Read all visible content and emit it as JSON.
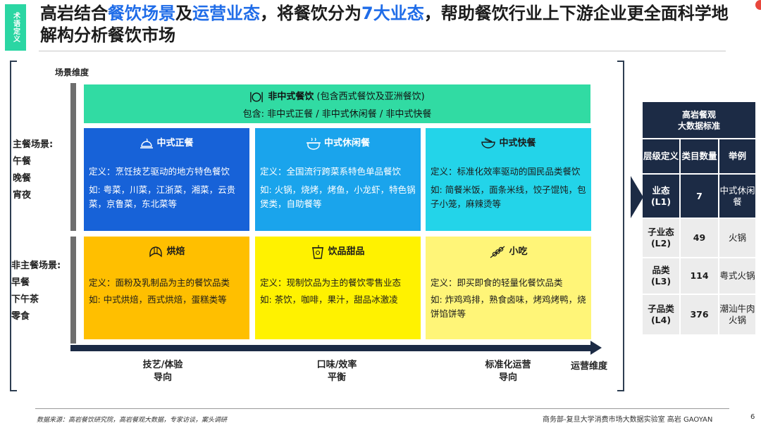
{
  "tag": {
    "text": "术语定义"
  },
  "title": {
    "parts": [
      {
        "t": "高岩结合",
        "hl": false
      },
      {
        "t": "餐饮场景",
        "hl": true
      },
      {
        "t": "及",
        "hl": false
      },
      {
        "t": "运营业态",
        "hl": true
      },
      {
        "t": "，将餐饮分为",
        "hl": false
      },
      {
        "t": "7大业态",
        "hl": true
      },
      {
        "t": "，帮助餐饮行业上下游企业更全面科学地解构分析餐饮市场",
        "hl": false
      }
    ]
  },
  "matrix": {
    "y_dimension": "场景维度",
    "x_dimension": "运营维度",
    "row_labels": {
      "main_title": "主餐场景:",
      "main_items": [
        "午餐",
        "晚餐",
        "宵夜"
      ],
      "non_main_title": "非主餐场景:",
      "non_main_items": [
        "早餐",
        "下午茶",
        "零食"
      ]
    },
    "banner": {
      "title": "非中式餐饮",
      "subtitle": "(包含西式餐饮及亚洲餐饮)",
      "content": "包含: 非中式正餐 / 非中式休闲餐 / 非中式快餐",
      "icon": "fork-knife-plate-icon"
    },
    "cells": {
      "chinese_formal": {
        "name": "中式正餐",
        "icon": "cloche-icon",
        "definition": "定义：烹饪技艺驱动的地方特色餐饮",
        "examples": "如: 粤菜，川菜，江浙菜，湘菜，云贵菜，京鲁菜，东北菜等"
      },
      "chinese_casual": {
        "name": "中式休闲餐",
        "icon": "hotpot-icon",
        "definition": "定义：全国流行跨菜系特色单品餐饮",
        "examples": "如: 火锅，烧烤，烤鱼，小龙虾，特色锅煲类，自助餐等"
      },
      "chinese_fast": {
        "name": "中式快餐",
        "icon": "bowl-icon",
        "definition": "定义：标准化效率驱动的国民品类餐饮",
        "examples": "如: 简餐米饭，面条米线，饺子馄饨，包子小笼，麻辣烫等"
      },
      "bakery": {
        "name": "烘焙",
        "icon": "croissant-icon",
        "definition": "定义：面粉及乳制品为主的餐饮品类",
        "examples": "如: 中式烘焙，西式烘焙，蛋糕类等"
      },
      "drinks": {
        "name": "饮品甜品",
        "icon": "cup-icon",
        "definition": "定义：现制饮品为主的餐饮零售业态",
        "examples": "如: 茶饮，咖啡，果汁，甜品冰激凌"
      },
      "snacks": {
        "name": "小吃",
        "icon": "skewer-icon",
        "definition": "定义：即买即食的轻量化餐饮品类",
        "examples": "如: 炸鸡鸡排，熟食卤味，烤鸡烤鸭，烧饼馅饼等"
      }
    },
    "x_labels": [
      {
        "line1": "技艺/体验",
        "line2": "导向"
      },
      {
        "line1": "口味/效率",
        "line2": "平衡"
      },
      {
        "line1": "标准化运营",
        "line2": "导向"
      }
    ]
  },
  "standard_table": {
    "title_line1": "高岩餐观",
    "title_line2": "大数据标准",
    "columns": [
      "层级定义",
      "类目数量",
      "举例"
    ],
    "rows": [
      {
        "level": "业态(L1)",
        "count": "7",
        "example": "中式休闲餐",
        "active": true
      },
      {
        "level": "子业态(L2)",
        "count": "49",
        "example": "火锅",
        "active": false
      },
      {
        "level": "品类(L3)",
        "count": "114",
        "example": "粤式火锅",
        "active": false
      },
      {
        "level": "子品类(L4)",
        "count": "376",
        "example": "潮汕牛肉火锅",
        "active": false
      }
    ]
  },
  "footer": {
    "source": "数据来源：高岩餐饮研究院，高岩餐观大数据，专家访谈，案头调研",
    "credits": "商务部-复旦大学消费市场大数据实验室   高岩 GAOYAN",
    "page": "6"
  },
  "colors": {
    "accent_green": "#2bd6a3",
    "highlight_blue": "#1f6ce8",
    "navy": "#1c2b45",
    "formal_blue": "#1762d8",
    "casual_cyan": "#1aa4ec",
    "fast_turquoise": "#23d4e9",
    "bakery_yellow": "#ffbf00",
    "drinks_yellow": "#fff200",
    "snack_yellow": "#fff578"
  }
}
